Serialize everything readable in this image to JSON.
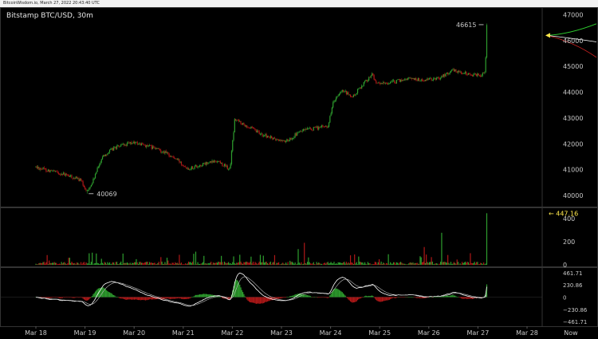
{
  "topbar_text": "BitcoinWisdom.io, March 27, 2022 20:43:40 UTC",
  "title": "Bitstamp BTC/USD, 30m",
  "labels": {
    "high_marker": "46615",
    "low_marker": "40069",
    "volume_marker": "447.16"
  },
  "colors": {
    "up": "#2e9e2e",
    "down": "#b01818",
    "volume_label": "#ffe84c",
    "line_white": "#ffffff",
    "line_green": "#2fd02f",
    "line_red": "#cc2222"
  },
  "chart_data": [
    {
      "type": "candlestick",
      "panel": "price",
      "x_ticks": [
        "Mar 18",
        "Mar 19",
        "Mar 20",
        "Mar 21",
        "Mar 22",
        "Mar 23",
        "Mar 24",
        "Mar 25",
        "Mar 26",
        "Mar 27",
        "Mar 28",
        "Now"
      ],
      "y_ticks": [
        40000,
        41000,
        42000,
        43000,
        44000,
        45000,
        46000,
        47000
      ],
      "ylim": [
        39600,
        47200
      ],
      "anchors": [
        [
          0,
          41100
        ],
        [
          0.3,
          40950
        ],
        [
          0.6,
          40800
        ],
        [
          0.9,
          40600
        ],
        [
          1.05,
          40150
        ],
        [
          1.15,
          40500
        ],
        [
          1.35,
          41500
        ],
        [
          1.6,
          41850
        ],
        [
          2.0,
          42050
        ],
        [
          2.3,
          41900
        ],
        [
          2.6,
          41700
        ],
        [
          2.9,
          41350
        ],
        [
          3.1,
          41050
        ],
        [
          3.4,
          41200
        ],
        [
          3.7,
          41350
        ],
        [
          3.95,
          41000
        ],
        [
          4.05,
          42950
        ],
        [
          4.3,
          42700
        ],
        [
          4.55,
          42400
        ],
        [
          4.9,
          42150
        ],
        [
          5.1,
          42100
        ],
        [
          5.4,
          42500
        ],
        [
          5.7,
          42600
        ],
        [
          5.95,
          42700
        ],
        [
          6.05,
          43600
        ],
        [
          6.25,
          44050
        ],
        [
          6.45,
          43800
        ],
        [
          6.65,
          44300
        ],
        [
          6.85,
          44700
        ],
        [
          6.95,
          44300
        ],
        [
          7.3,
          44400
        ],
        [
          7.6,
          44550
        ],
        [
          7.9,
          44450
        ],
        [
          8.2,
          44550
        ],
        [
          8.5,
          44850
        ],
        [
          8.8,
          44700
        ],
        [
          9.05,
          44650
        ],
        [
          9.15,
          44850
        ],
        [
          9.18,
          46615
        ]
      ],
      "high": 46615,
      "low": 40069
    },
    {
      "type": "bar",
      "panel": "volume",
      "y_ticks": [
        0,
        200,
        400
      ],
      "ylim": [
        0,
        470
      ],
      "max_value": 447.16
    },
    {
      "type": "histogram+lines",
      "panel": "macd",
      "y_ticks": [
        461.71,
        230.86,
        0,
        -230.86,
        -461.71
      ],
      "ylim": [
        -520,
        520
      ]
    }
  ]
}
